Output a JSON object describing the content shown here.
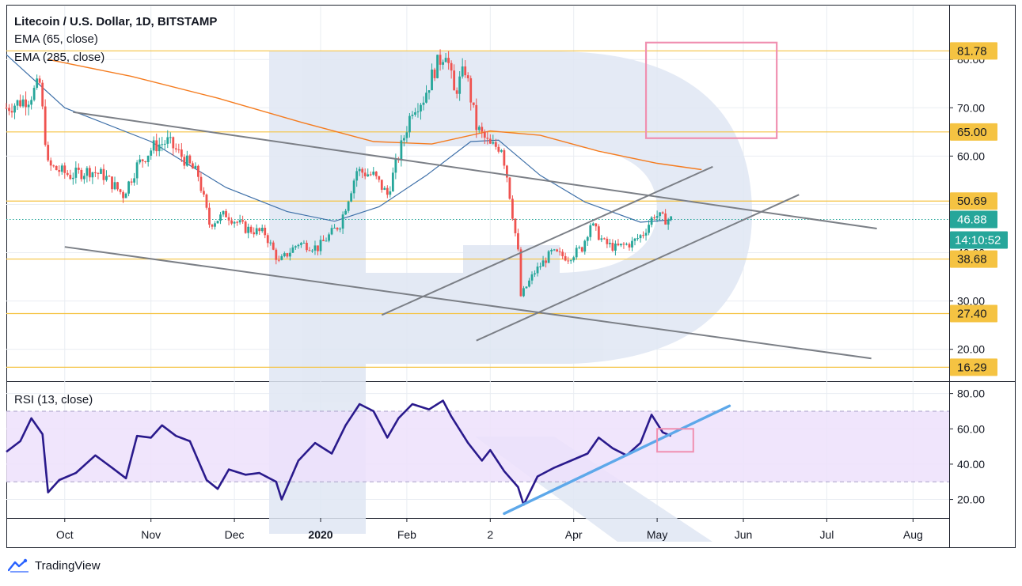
{
  "header": {
    "title": "Litecoin / U.S. Dollar, 1D, BITSTAMP",
    "indicators": [
      "EMA (65, close)",
      "EMA (285, close)"
    ]
  },
  "footer": {
    "brand": "TradingView"
  },
  "colors": {
    "up": "#26a69a",
    "down": "#ef5350",
    "level": "#f5c342",
    "ema65": "#3d6fa8",
    "ema285": "#f57c1f",
    "trendline": "#7b7f86",
    "rsi": "#2a1a8c",
    "rsiBand": "#ede0fb",
    "rsiTrend": "#5da8ea",
    "zone": "#f08fb0",
    "current": "#26a69a",
    "watermark": "#dfe6f3"
  },
  "chart_data": {
    "type": "candlestick",
    "title": "Litecoin / U.S. Dollar, 1D, BITSTAMP",
    "price_axis": {
      "ylim": [
        13.4,
        91.0
      ],
      "ticks": [
        80,
        70,
        60,
        50,
        40,
        30,
        20
      ],
      "tick_labels": [
        "80.00",
        "70.00",
        "60.00",
        "50.00",
        "40.00",
        "30.00",
        "20.00"
      ]
    },
    "time_axis": {
      "date_range": [
        "2019-09-10",
        "2020-08-14"
      ],
      "ticks": [
        {
          "label": "Oct",
          "date": "2019-10-01"
        },
        {
          "label": "Nov",
          "date": "2019-11-01"
        },
        {
          "label": "Dec",
          "date": "2019-12-01"
        },
        {
          "label": "2020",
          "date": "2020-01-01",
          "bold": true
        },
        {
          "label": "Feb",
          "date": "2020-02-01"
        },
        {
          "label": "2",
          "date": "2020-03-02"
        },
        {
          "label": "Apr",
          "date": "2020-04-01"
        },
        {
          "label": "May",
          "date": "2020-05-01"
        },
        {
          "label": "Jun",
          "date": "2020-06-01"
        },
        {
          "label": "Jul",
          "date": "2020-07-01"
        },
        {
          "label": "Aug",
          "date": "2020-08-01"
        }
      ]
    },
    "levels": [
      {
        "value": 81.78,
        "label": "81.78"
      },
      {
        "value": 65.0,
        "label": "65.00"
      },
      {
        "value": 50.69,
        "label": "50.69"
      },
      {
        "value": 38.68,
        "label": "38.68"
      },
      {
        "value": 27.4,
        "label": "27.40"
      },
      {
        "value": 16.29,
        "label": "16.29"
      }
    ],
    "current_price": {
      "value": 46.88,
      "label": "46.88",
      "countdown": "14:10:52"
    },
    "close_anchors": [
      [
        "2019-09-10",
        70
      ],
      [
        "2019-09-18",
        72
      ],
      [
        "2019-09-22",
        75
      ],
      [
        "2019-09-25",
        58
      ],
      [
        "2019-10-03",
        56
      ],
      [
        "2019-10-10",
        57
      ],
      [
        "2019-10-15",
        56
      ],
      [
        "2019-10-22",
        52
      ],
      [
        "2019-10-27",
        58
      ],
      [
        "2019-11-02",
        62
      ],
      [
        "2019-11-07",
        63
      ],
      [
        "2019-11-12",
        60
      ],
      [
        "2019-11-18",
        56
      ],
      [
        "2019-11-22",
        46
      ],
      [
        "2019-11-28",
        48
      ],
      [
        "2019-12-05",
        45
      ],
      [
        "2019-12-12",
        44
      ],
      [
        "2019-12-17",
        38
      ],
      [
        "2019-12-24",
        42
      ],
      [
        "2019-12-31",
        41
      ],
      [
        "2020-01-08",
        46
      ],
      [
        "2020-01-14",
        57
      ],
      [
        "2020-01-20",
        56
      ],
      [
        "2020-01-25",
        52
      ],
      [
        "2020-01-30",
        62
      ],
      [
        "2020-02-03",
        70
      ],
      [
        "2020-02-07",
        72
      ],
      [
        "2020-02-11",
        78
      ],
      [
        "2020-02-15",
        82
      ],
      [
        "2020-02-18",
        73
      ],
      [
        "2020-02-22",
        78
      ],
      [
        "2020-02-26",
        66
      ],
      [
        "2020-03-02",
        62
      ],
      [
        "2020-03-06",
        62
      ],
      [
        "2020-03-08",
        56
      ],
      [
        "2020-03-12",
        40
      ],
      [
        "2020-03-13",
        31
      ],
      [
        "2020-03-18",
        36
      ],
      [
        "2020-03-24",
        40
      ],
      [
        "2020-03-30",
        39
      ],
      [
        "2020-04-04",
        41
      ],
      [
        "2020-04-07",
        46
      ],
      [
        "2020-04-12",
        42
      ],
      [
        "2020-04-16",
        41
      ],
      [
        "2020-04-22",
        42
      ],
      [
        "2020-04-26",
        44
      ],
      [
        "2020-04-30",
        48
      ],
      [
        "2020-05-03",
        47
      ],
      [
        "2020-05-06",
        46.9
      ]
    ],
    "ema65_points": [
      [
        "2019-09-10",
        81
      ],
      [
        "2019-10-01",
        70
      ],
      [
        "2019-11-01",
        63
      ],
      [
        "2019-11-28",
        53.5
      ],
      [
        "2019-12-20",
        48.5
      ],
      [
        "2020-01-06",
        46.5
      ],
      [
        "2020-01-22",
        49.5
      ],
      [
        "2020-02-08",
        56
      ],
      [
        "2020-02-24",
        63
      ],
      [
        "2020-03-05",
        63.3
      ],
      [
        "2020-03-20",
        56
      ],
      [
        "2020-04-05",
        50.5
      ],
      [
        "2020-04-25",
        46.3
      ],
      [
        "2020-05-06",
        46.8
      ]
    ],
    "ema285_points": [
      [
        "2019-09-25",
        80
      ],
      [
        "2019-10-25",
        76.5
      ],
      [
        "2019-11-25",
        72
      ],
      [
        "2019-12-25",
        67
      ],
      [
        "2020-01-20",
        63
      ],
      [
        "2020-02-10",
        62.5
      ],
      [
        "2020-03-02",
        65.2
      ],
      [
        "2020-03-20",
        64.3
      ],
      [
        "2020-04-10",
        61
      ],
      [
        "2020-05-01",
        58.5
      ],
      [
        "2020-05-17",
        57.2
      ]
    ],
    "trendlines": [
      {
        "from": [
          "2019-10-04",
          69.1
        ],
        "to": [
          "2020-07-19",
          45.0
        ]
      },
      {
        "from": [
          "2019-10-01",
          41.2
        ],
        "to": [
          "2020-07-17",
          18.1
        ]
      },
      {
        "from": [
          "2020-01-23",
          27.1
        ],
        "to": [
          "2020-05-21",
          57.8
        ]
      },
      {
        "from": [
          "2020-02-26",
          21.8
        ],
        "to": [
          "2020-06-21",
          52.0
        ]
      }
    ],
    "target_zone": {
      "from": [
        "2020-04-27",
        83.5
      ],
      "to": [
        "2020-06-13",
        63.7
      ]
    },
    "rsi": {
      "label": "RSI (13, close)",
      "ylim": [
        9.5,
        87.0
      ],
      "ticks": [
        80,
        60,
        40,
        20
      ],
      "tick_labels": [
        "80.00",
        "60.00",
        "40.00",
        "20.00"
      ],
      "band": [
        30,
        70
      ],
      "points": [
        [
          "2019-09-10",
          47
        ],
        [
          "2019-09-15",
          53
        ],
        [
          "2019-09-19",
          66
        ],
        [
          "2019-09-23",
          57
        ],
        [
          "2019-09-25",
          24
        ],
        [
          "2019-09-29",
          31
        ],
        [
          "2019-10-05",
          35
        ],
        [
          "2019-10-12",
          45
        ],
        [
          "2019-10-18",
          38
        ],
        [
          "2019-10-23",
          32
        ],
        [
          "2019-10-27",
          56
        ],
        [
          "2019-11-01",
          55
        ],
        [
          "2019-11-05",
          62
        ],
        [
          "2019-11-10",
          56
        ],
        [
          "2019-11-15",
          53
        ],
        [
          "2019-11-21",
          31
        ],
        [
          "2019-11-25",
          26
        ],
        [
          "2019-11-29",
          37
        ],
        [
          "2019-12-05",
          34
        ],
        [
          "2019-12-10",
          35
        ],
        [
          "2019-12-16",
          30
        ],
        [
          "2019-12-18",
          20
        ],
        [
          "2019-12-24",
          42
        ],
        [
          "2019-12-30",
          52
        ],
        [
          "2020-01-05",
          46
        ],
        [
          "2020-01-10",
          62
        ],
        [
          "2020-01-15",
          74
        ],
        [
          "2020-01-20",
          70
        ],
        [
          "2020-01-25",
          55
        ],
        [
          "2020-01-29",
          66
        ],
        [
          "2020-02-03",
          74
        ],
        [
          "2020-02-09",
          71
        ],
        [
          "2020-02-14",
          76
        ],
        [
          "2020-02-17",
          67
        ],
        [
          "2020-02-23",
          52
        ],
        [
          "2020-02-28",
          42
        ],
        [
          "2020-03-02",
          48
        ],
        [
          "2020-03-07",
          36
        ],
        [
          "2020-03-12",
          27
        ],
        [
          "2020-03-14",
          17
        ],
        [
          "2020-03-19",
          33
        ],
        [
          "2020-03-25",
          38
        ],
        [
          "2020-03-31",
          42
        ],
        [
          "2020-04-06",
          46
        ],
        [
          "2020-04-10",
          55
        ],
        [
          "2020-04-15",
          49
        ],
        [
          "2020-04-20",
          45
        ],
        [
          "2020-04-25",
          52
        ],
        [
          "2020-04-29",
          68
        ],
        [
          "2020-05-03",
          58
        ],
        [
          "2020-05-06",
          56
        ]
      ],
      "trendline": {
        "from": [
          "2020-03-07",
          12
        ],
        "to": [
          "2020-05-27",
          73
        ]
      },
      "zone": {
        "from": [
          "2020-05-01",
          60
        ],
        "to": [
          "2020-05-14",
          47
        ]
      }
    }
  }
}
